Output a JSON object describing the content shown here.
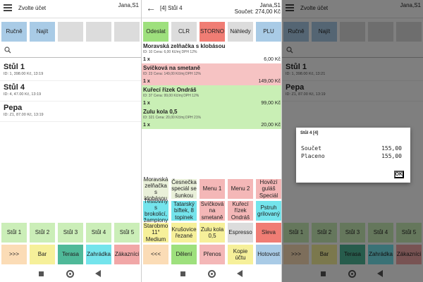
{
  "panel1": {
    "title": "Zvolte účet",
    "user": "Jana,S1",
    "buttons": [
      "Ručně",
      "Najít"
    ],
    "tables": [
      {
        "name": "Stůl 1",
        "info": "ID: 1, 398.00 Kč, 13:19"
      },
      {
        "name": "Stůl 4",
        "info": "ID: 4, 47.00 Kč, 13:19"
      },
      {
        "name": "Pepa",
        "info": "ID: Z1, 87.00 Kč, 13:19"
      }
    ],
    "row1": [
      "Stůl 1",
      "Stůl 2",
      "Stůl 3",
      "Stůl 4",
      "Stůl 5"
    ],
    "row2": [
      ">>>",
      "Bar",
      "Terasa",
      "Zahrádka",
      "Zákazníci"
    ]
  },
  "panel2": {
    "title": "[4] Stůl 4",
    "user": "Jana,S1",
    "sum": "Součet: 274,00 Kč",
    "buttons": [
      "Odeslat",
      "CLR",
      "STORNO",
      "Náhledy",
      "PLU"
    ],
    "items": [
      {
        "name": "Moravská zelňačka s klobásou",
        "desc": "ID: 10 Cena: 6,00 Kč/mj DPH 12%",
        "qty": "1 x",
        "price": "6,00 Kč"
      },
      {
        "name": "Svíčková na smetaně",
        "desc": "ID: 23 Cena: 149,00 Kč/mj DPH 12%",
        "qty": "1 x",
        "price": "149,00 Kč"
      },
      {
        "name": "Kuřecí řízek Ondráš",
        "desc": "ID: 37 Cena: 99,00 Kč/mj DPH 12%",
        "qty": "1 x",
        "price": "99,00 Kč"
      },
      {
        "name": "Zulu kola 0,5",
        "desc": "ID: 321 Cena: 20,00 Kč/mj DPH 21%",
        "qty": "1 x",
        "price": "20,00 Kč"
      }
    ],
    "grid": [
      [
        "Moravská zelňačka s klobásou",
        "Česnečka speciál se šunkou",
        "Menu 1",
        "Menu 2",
        "Hovězí guláš Speciál"
      ],
      [
        "Těstoviny s brokolicí, žampiony",
        "Tatarský biftek, 8 topinek",
        "Svíčková na smetaně",
        "Kuřecí řízek Ondráš",
        "Pstruh grilovaný"
      ],
      [
        "Starobmo 11° Medium",
        "Krušovice řezané",
        "Zulu kola 0,5",
        "Espresso",
        "Sleva"
      ],
      [
        "<<<",
        "Dělení",
        "Přenos",
        "Kopie účtu",
        "Hotovost"
      ]
    ]
  },
  "panel3": {
    "title": "Zvolte účet",
    "user": "Jana,S1",
    "buttons": [
      "Ručně",
      "Najít"
    ],
    "tables": [
      {
        "name": "Stůl 1",
        "info": "ID: 1, 398.00 Kč, 13:21"
      },
      {
        "name": "Pepa",
        "info": "ID: Z1, 87.00 Kč, 13:19"
      }
    ],
    "row1": [
      "Stůl 1",
      "Stůl 2",
      "Stůl 3",
      "Stůl 4",
      "Stůl 5"
    ],
    "row2": [
      ">>>",
      "Bar",
      "Terasa",
      "Zahrádka",
      "Zákazníci"
    ],
    "dialog": {
      "title": "Stůl 4 [4]",
      "line1_label": "Součet",
      "line1_value": "155,00",
      "line2_label": "Placeno",
      "line2_value": "155,00",
      "ok": "OK"
    }
  }
}
